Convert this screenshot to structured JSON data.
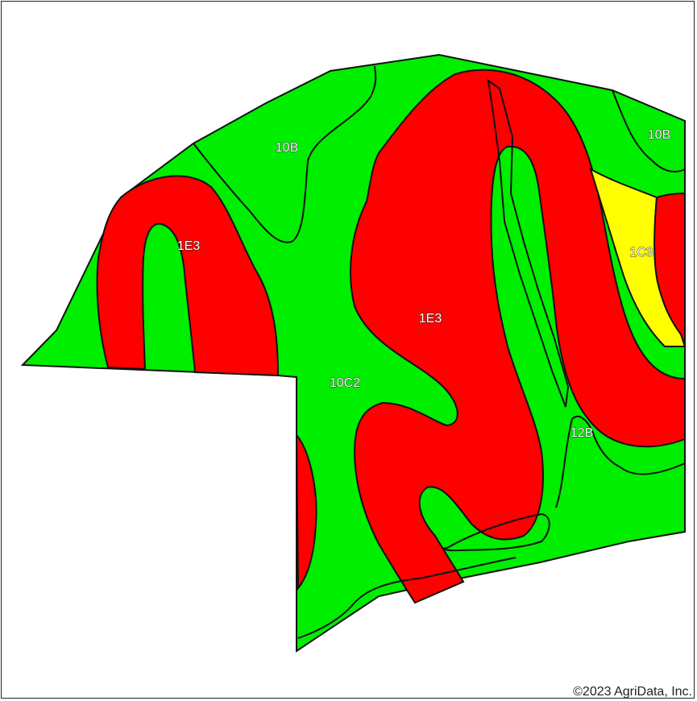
{
  "map": {
    "colors": {
      "green": "#00ee00",
      "red": "#ff0000",
      "yellow": "#ffff00",
      "boundary": "#111111",
      "background": "#ffffff"
    },
    "soil_units": {
      "u_10B_nw": "10B",
      "u_10B_ne": "10B",
      "u_1E3_w": "1E3",
      "u_1E3_c": "1E3",
      "u_1C3": "1C3",
      "u_10C2": "10C2",
      "u_12B": "12B"
    },
    "copyright": "©2023 AgriData, Inc."
  }
}
